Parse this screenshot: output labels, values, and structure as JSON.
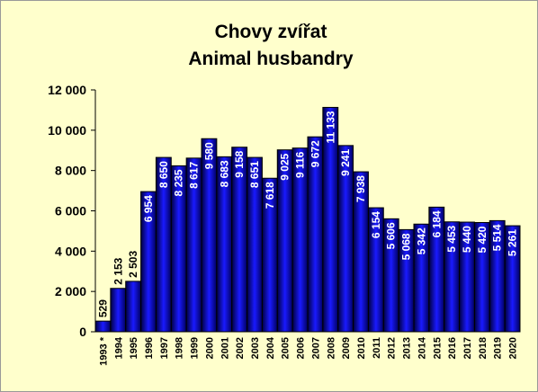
{
  "chart_data": {
    "type": "bar",
    "title": "Chovy zvířat",
    "subtitle": "Animal husbandry",
    "categories": [
      "1993 *",
      "1994",
      "1995",
      "1996",
      "1997",
      "1998",
      "1999",
      "2000",
      "2001",
      "2002",
      "2003",
      "2004",
      "2005",
      "2006",
      "2007",
      "2008",
      "2009",
      "2010",
      "2011",
      "2012",
      "2013",
      "2014",
      "2015",
      "2016",
      "2017",
      "2018",
      "2019",
      "2020"
    ],
    "values": [
      529,
      2153,
      2503,
      6954,
      8650,
      8235,
      8617,
      9580,
      8683,
      9158,
      8651,
      7618,
      9025,
      9116,
      9672,
      11133,
      9241,
      7938,
      6154,
      5606,
      5068,
      5342,
      6184,
      5453,
      5440,
      5420,
      5514,
      5261
    ],
    "value_labels": [
      "529",
      "2 153",
      "2 503",
      "6 954",
      "8 650",
      "8 235",
      "8 617",
      "9 580",
      "8 683",
      "9 158",
      "8 651",
      "7 618",
      "9 025",
      "9 116",
      "9 672",
      "11 133",
      "9 241",
      "7 938",
      "6 154",
      "5 606",
      "5 068",
      "5 342",
      "6 184",
      "5 453",
      "5 440",
      "5 420",
      "5 514",
      "5 261"
    ],
    "color": "#000099",
    "ylim": [
      0,
      12000
    ],
    "yticks": [
      0,
      {
        "value": 2000,
        "label": "2 000"
      },
      {
        "value": 4000,
        "label": "4 000"
      },
      {
        "value": 6000,
        "label": "6 000"
      },
      {
        "value": 8000,
        "label": "8 000"
      },
      {
        "value": 10000,
        "label": "10 000"
      },
      {
        "value": 12000,
        "label": "12 000"
      }
    ],
    "grid": false
  }
}
